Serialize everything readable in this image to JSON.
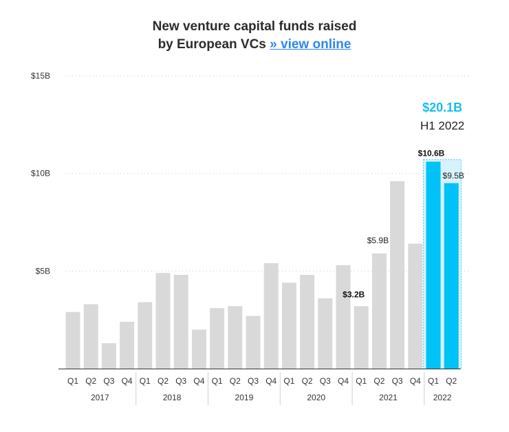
{
  "title": {
    "line1": "New venture capital funds raised",
    "line2_prefix": "by European VCs ",
    "link_text": "» view online"
  },
  "chart_data": {
    "type": "bar",
    "title": "New venture capital funds raised by European VCs",
    "ylim": [
      0,
      15
    ],
    "y_ticks": [
      {
        "value": 15,
        "label": "$15B"
      },
      {
        "value": 10,
        "label": "$10B"
      },
      {
        "value": 5,
        "label": "$5B"
      }
    ],
    "grid": "dotted horizontal",
    "bars": [
      {
        "year": "2017",
        "quarter": "Q1",
        "value": 2.9
      },
      {
        "year": "2017",
        "quarter": "Q2",
        "value": 3.3
      },
      {
        "year": "2017",
        "quarter": "Q3",
        "value": 1.3
      },
      {
        "year": "2017",
        "quarter": "Q4",
        "value": 2.4
      },
      {
        "year": "2018",
        "quarter": "Q1",
        "value": 3.4
      },
      {
        "year": "2018",
        "quarter": "Q2",
        "value": 4.9
      },
      {
        "year": "2018",
        "quarter": "Q3",
        "value": 4.8
      },
      {
        "year": "2018",
        "quarter": "Q4",
        "value": 2.0
      },
      {
        "year": "2019",
        "quarter": "Q1",
        "value": 3.1
      },
      {
        "year": "2019",
        "quarter": "Q2",
        "value": 3.2
      },
      {
        "year": "2019",
        "quarter": "Q3",
        "value": 2.7
      },
      {
        "year": "2019",
        "quarter": "Q4",
        "value": 5.4
      },
      {
        "year": "2020",
        "quarter": "Q1",
        "value": 4.4
      },
      {
        "year": "2020",
        "quarter": "Q2",
        "value": 4.8
      },
      {
        "year": "2020",
        "quarter": "Q3",
        "value": 3.6
      },
      {
        "year": "2020",
        "quarter": "Q4",
        "value": 5.3
      },
      {
        "year": "2021",
        "quarter": "Q1",
        "value": 3.2,
        "label": "$3.2B",
        "label_bold": true
      },
      {
        "year": "2021",
        "quarter": "Q2",
        "value": 5.9,
        "label": "$5.9B",
        "label_bold": false
      },
      {
        "year": "2021",
        "quarter": "Q3",
        "value": 9.6
      },
      {
        "year": "2021",
        "quarter": "Q4",
        "value": 6.4
      },
      {
        "year": "2022",
        "quarter": "Q1",
        "value": 10.6,
        "label": "$10.6B",
        "label_bold": true,
        "highlight": true
      },
      {
        "year": "2022",
        "quarter": "Q2",
        "value": 9.5,
        "label": "$9.5B",
        "label_bold": false,
        "highlight": true
      }
    ],
    "years": [
      "2017",
      "2018",
      "2019",
      "2020",
      "2021",
      "2022"
    ],
    "highlight": {
      "value": 20.1,
      "value_label": "$20.1B",
      "period_label": "H1 2022"
    },
    "colors": {
      "bar": "#d9d9d9",
      "highlight_bar": "#00c2f7",
      "highlight_box": "#d5f2fd",
      "highlight_border": "#4fc7ef",
      "grid": "#c6c6c6",
      "link": "#2f86f6"
    }
  }
}
